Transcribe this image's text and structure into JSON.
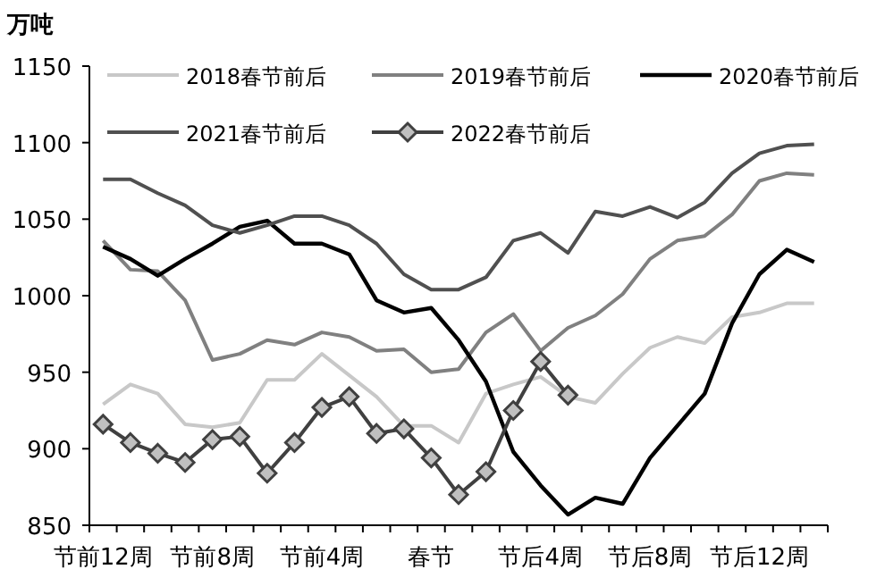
{
  "chart_data": {
    "type": "line",
    "ylabel": "万吨",
    "categories": [
      "节前12周",
      null,
      null,
      null,
      "节前8周",
      null,
      null,
      null,
      "节前4周",
      null,
      null,
      null,
      "春节",
      null,
      null,
      null,
      "节后4周",
      null,
      null,
      null,
      "节后8周",
      null,
      null,
      null,
      "节后12周",
      null,
      null
    ],
    "ylim": [
      850,
      1150
    ],
    "yticks": [
      850,
      900,
      950,
      1000,
      1050,
      1100,
      1150
    ],
    "grid": false,
    "legend": "top",
    "series": [
      {
        "name": "2018春节前后",
        "color": "#c8c8c8",
        "marker": "none",
        "values": [
          929,
          942,
          936,
          916,
          914,
          917,
          945,
          945,
          962,
          948,
          934,
          915,
          915,
          904,
          936,
          942,
          947,
          934,
          930,
          949,
          966,
          973,
          969,
          986,
          989,
          995,
          995
        ]
      },
      {
        "name": "2019春节前后",
        "color": "#808080",
        "marker": "none",
        "values": [
          1036,
          1017,
          1016,
          997,
          958,
          962,
          971,
          968,
          976,
          973,
          964,
          965,
          950,
          952,
          976,
          988,
          964,
          979,
          987,
          1001,
          1024,
          1036,
          1039,
          1053,
          1075,
          1080,
          1079
        ]
      },
      {
        "name": "2020春节前后",
        "color": "#000000",
        "marker": "none",
        "values": [
          1032,
          1024,
          1013,
          1024,
          1034,
          1045,
          1049,
          1034,
          1034,
          1027,
          997,
          989,
          992,
          971,
          944,
          898,
          876,
          857,
          868,
          864,
          894,
          915,
          936,
          982,
          1014,
          1030,
          1022
        ]
      },
      {
        "name": "2021春节前后",
        "color": "#505050",
        "marker": "none",
        "values": [
          1076,
          1076,
          1067,
          1059,
          1046,
          1041,
          1046,
          1052,
          1052,
          1046,
          1034,
          1014,
          1004,
          1004,
          1012,
          1036,
          1041,
          1028,
          1055,
          1052,
          1058,
          1051,
          1061,
          1080,
          1093,
          1098,
          1099
        ]
      },
      {
        "name": "2022春节前后",
        "color": "#404040",
        "marker": "diamond",
        "values": [
          916,
          904,
          897,
          891,
          906,
          908,
          884,
          904,
          927,
          934,
          910,
          913,
          894,
          870,
          885,
          925,
          957,
          935,
          null,
          null,
          null,
          null,
          null,
          null,
          null,
          null,
          null
        ]
      }
    ]
  }
}
